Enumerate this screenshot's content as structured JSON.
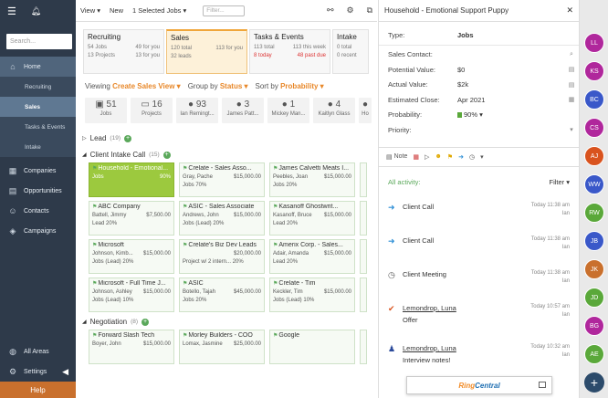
{
  "sidebar": {
    "search_placeholder": "Search...",
    "items": [
      {
        "label": "Home",
        "icon": "home-icon",
        "glyph": "⌂"
      },
      {
        "label": "Recruiting"
      },
      {
        "label": "Sales"
      },
      {
        "label": "Tasks & Events"
      },
      {
        "label": "Intake"
      },
      {
        "label": "Companies",
        "icon": "building-icon",
        "glyph": "▦"
      },
      {
        "label": "Opportunities",
        "icon": "chart-icon",
        "glyph": "▤"
      },
      {
        "label": "Contacts",
        "icon": "contacts-icon",
        "glyph": "☺"
      },
      {
        "label": "Campaigns",
        "icon": "megaphone-icon",
        "glyph": "◈"
      }
    ],
    "all_areas": "All Areas",
    "settings": "Settings",
    "help": "Help"
  },
  "toolbar": {
    "view": "View ▾",
    "new": "New",
    "selected": "1 Selected Jobs ▾",
    "filter_placeholder": "Filter..."
  },
  "pipelines": [
    {
      "title": "Recruiting",
      "r1l": "54 Jobs",
      "r1r": "49 for you",
      "r2l": "13 Projects",
      "r2r": "13 for you"
    },
    {
      "title": "Sales",
      "r1l": "120 total",
      "r1r": "113 for you",
      "r2l": "32 leads",
      "r2r": ""
    },
    {
      "title": "Tasks & Events",
      "r1l": "113 total",
      "r1r": "113 this week",
      "r2l": "8 today",
      "r2r": "48 past due"
    },
    {
      "title": "Intake",
      "r1l": "0 total",
      "r1r": "",
      "r2l": "0 recent",
      "r2r": ""
    }
  ],
  "viewbar": {
    "viewing": "Viewing",
    "viewing_val": "Create Sales View ▾",
    "group": "Group by",
    "group_val": "Status ▾",
    "sort": "Sort by",
    "sort_val": "Probability ▾"
  },
  "stats": [
    {
      "value": "51",
      "label": "Jobs",
      "glyph": "▣"
    },
    {
      "value": "16",
      "label": "Projects",
      "glyph": "▭"
    },
    {
      "value": "93",
      "label": "Ian Remingt...",
      "glyph": "●"
    },
    {
      "value": "3",
      "label": "James Patt...",
      "glyph": "●"
    },
    {
      "value": "1",
      "label": "Mickey Man...",
      "glyph": "●"
    },
    {
      "value": "4",
      "label": "Kaitlyn Glass",
      "glyph": "●"
    },
    {
      "value": "",
      "label": "Ho",
      "glyph": "●"
    }
  ],
  "sections": {
    "lead": {
      "title": "Lead",
      "count": "(19)"
    },
    "intake": {
      "title": "Client Intake Call",
      "count": "(15)"
    },
    "negotiation": {
      "title": "Negotiation",
      "count": "(8)"
    }
  },
  "cards": [
    {
      "title": "Household - Emotional...",
      "l": "Jobs",
      "r": "90%",
      "extra": "",
      "hl": true
    },
    {
      "title": "Crelate - Sales Asso...",
      "l": "Gray, Pache",
      "r": "$15,000.00",
      "extra": "Jobs 70%"
    },
    {
      "title": "James Calvetti Meats I...",
      "l": "Peebles, Joan",
      "r": "$15,000.00",
      "extra": "Jobs 20%"
    },
    {
      "title": "ABC Company",
      "l": "Battell, Jimmy",
      "r": "$7,500.00",
      "extra": "Lead 20%"
    },
    {
      "title": "ASIC - Sales Associate",
      "l": "Andrews, John",
      "r": "$15,000.00",
      "extra": "Jobs (Lead) 20%"
    },
    {
      "title": "Kasanoff Ghostwrit...",
      "l": "Kasanoff, Bruce",
      "r": "$15,000.00",
      "extra": "Lead 20%"
    },
    {
      "title": "Microsoft",
      "l": "Johnson, Kimb...",
      "r": "$15,000.00",
      "extra": "Jobs (Lead) 20%"
    },
    {
      "title": "Crelate's Biz Dev Leads",
      "l": "",
      "r": "$20,000.00",
      "extra": "Project w/ 2 intern... 20%"
    },
    {
      "title": "Amerix Corp. - Sales...",
      "l": "Adair, Amanda",
      "r": "$15,000.00",
      "extra": "Lead 20%"
    },
    {
      "title": "Microsoft - Full Time J...",
      "l": "Johnson, Ashley",
      "r": "$15,000.00",
      "extra": "Jobs (Lead) 10%"
    },
    {
      "title": "ASIC",
      "l": "Botello, Tajah",
      "r": "$45,000.00",
      "extra": "Jobs 20%"
    },
    {
      "title": "Crelate - Tim",
      "l": "Keckler, Tim",
      "r": "$15,000.00",
      "extra": "Jobs (Lead) 10%"
    }
  ],
  "neg_cards": [
    {
      "title": "Forward Slash Tech",
      "l": "Boyer, John",
      "r": "$15,000.00"
    },
    {
      "title": "Morley Builders - COO",
      "l": "Lomax, Jasmine",
      "r": "$25,000.00"
    },
    {
      "title": "Google",
      "l": "",
      "r": ""
    }
  ],
  "detail": {
    "header": "Household - Emotional Support Puppy",
    "type_label": "Type:",
    "type_value": "Jobs",
    "sales_contact": "Sales Contact:",
    "potential_label": "Potential Value:",
    "potential_value": "$0",
    "actual_label": "Actual Value:",
    "actual_value": "$2k",
    "close_label": "Estimated Close:",
    "close_value": "Apr 2021",
    "prob_label": "Probability:",
    "prob_value": "90% ▾",
    "priority_label": "Priority:",
    "note": "Note",
    "all_activity": "All activity:",
    "filter": "Filter ▾",
    "activities": [
      {
        "title": "Client Call",
        "sub": "",
        "time": "Today 11:38 am",
        "who": "Ian",
        "glyph": "➜",
        "color": "#2e8fd6"
      },
      {
        "title": "Client Call",
        "sub": "",
        "time": "Today 11:38 am",
        "who": "Ian",
        "glyph": "➜",
        "color": "#2e8fd6"
      },
      {
        "title": "Client Meeting",
        "sub": "",
        "time": "Today 11:38 am",
        "who": "Ian",
        "glyph": "◷",
        "color": "#555"
      },
      {
        "title": "Lemondrop, Luna",
        "sub": "Offer",
        "time": "Today 10:57 am",
        "who": "Ian",
        "glyph": "✔",
        "color": "#d9531e"
      },
      {
        "title": "Lemondrop, Luna",
        "sub": "Interview notes!",
        "time": "Today 10:32 am",
        "who": "Ian",
        "glyph": "♟",
        "color": "#2c4b9b"
      }
    ],
    "ringcentral_a": "Ring",
    "ringcentral_b": "Central"
  },
  "avatars": [
    {
      "initials": "LL",
      "color": "#b0279c"
    },
    {
      "initials": "KS",
      "color": "#b0279c"
    },
    {
      "initials": "BC",
      "color": "#3a58c9"
    },
    {
      "initials": "CS",
      "color": "#b0279c"
    },
    {
      "initials": "AJ",
      "color": "#d9531e"
    },
    {
      "initials": "WW",
      "color": "#3a58c9"
    },
    {
      "initials": "RW",
      "color": "#5aa83a"
    },
    {
      "initials": "JB",
      "color": "#3a58c9"
    },
    {
      "initials": "JK",
      "color": "#c9702d"
    },
    {
      "initials": "JD",
      "color": "#5aa83a"
    },
    {
      "initials": "BG",
      "color": "#b0279c"
    },
    {
      "initials": "AE",
      "color": "#5aa83a"
    }
  ]
}
